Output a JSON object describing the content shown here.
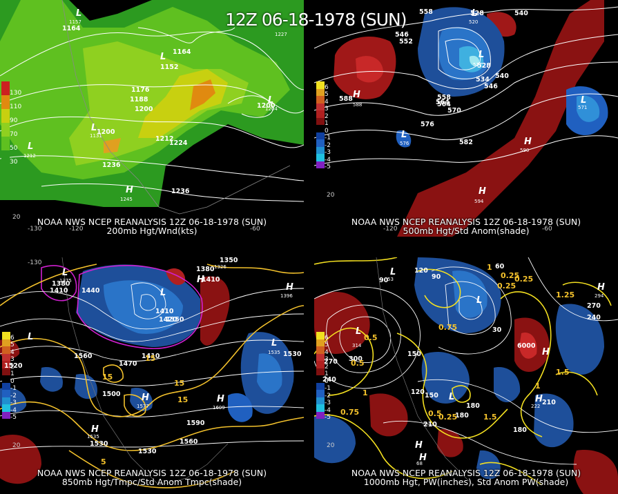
{
  "title": "12Z 06-18-1978 (SUN)",
  "panels": [
    {
      "caption_line1": "NOAA NWS NCEP REANALYSIS 12Z 06-18-1978 (SUN)",
      "caption_line2": "200mb Hgt/Wnd(kts)",
      "legend": [
        "130",
        "110",
        "90",
        "70",
        "50",
        "30"
      ],
      "legend_colors": [
        "#cc2020",
        "#e08a10",
        "#c8d010",
        "#8fd020",
        "#5fc020",
        "#2c9a20"
      ],
      "contour_labels": [
        "1164",
        "1152",
        "1164",
        "1176",
        "1188",
        "1200",
        "1200",
        "1212",
        "1224",
        "1236",
        "1236",
        "1200"
      ],
      "pressure_labels": [
        "L",
        "L",
        "L",
        "L",
        "L",
        "H"
      ],
      "station_numbers": [
        "1157",
        "1227",
        "1212",
        "1131",
        "1204",
        "1245"
      ],
      "axis_labels": [
        "-130",
        "-120",
        "20",
        "-60"
      ]
    },
    {
      "caption_line1": "NOAA NWS NCEP REANALYSIS 12Z 06-18-1978 (SUN)",
      "caption_line2": "500mb Hgt/Std Anom(shade)",
      "legend": [
        "6",
        "5",
        "4",
        "3",
        "2",
        "1",
        "0",
        "-1",
        "-2",
        "-3",
        "-4",
        "-5"
      ],
      "legend_colors": [
        "#f0e020",
        "#e0a020",
        "#d06020",
        "#c03030",
        "#b02020",
        "#801010",
        "#000000",
        "#1040a0",
        "#2060c0",
        "#2090d0",
        "#20c0e0",
        "#8020c0"
      ],
      "contour_labels": [
        "558",
        "528",
        "540",
        "546",
        "552",
        "564",
        "588",
        "558",
        "564",
        "570",
        "576",
        "582",
        "546",
        "540",
        "534",
        "528"
      ],
      "pressure_labels": [
        "L",
        "L",
        "L",
        "L",
        "H",
        "H",
        "H"
      ],
      "station_numbers": [
        "520",
        "588",
        "576",
        "571",
        "590",
        "594",
        "517"
      ],
      "axis_labels": [
        "20",
        "-120",
        "-60"
      ]
    },
    {
      "caption_line1": "NOAA NWS NCEP REANALYSIS 12Z 06-18-1978 (SUN)",
      "caption_line2": "850mb Hgt/Tmpc/Std Anom Tmpc(shade)",
      "legend": [
        "6",
        "5",
        "4",
        "3",
        "2",
        "1",
        "0",
        "-1",
        "-2",
        "-3",
        "-4",
        "-5"
      ],
      "legend_colors": [
        "#f0e020",
        "#e0a020",
        "#d06020",
        "#c03030",
        "#b02020",
        "#801010",
        "#000000",
        "#1040a0",
        "#2060c0",
        "#2090d0",
        "#20c0e0",
        "#8020c0"
      ],
      "contour_labels": [
        "1350",
        "1380",
        "1410",
        "1440",
        "1410",
        "1380",
        "1410",
        "1350",
        "1520",
        "1560",
        "1470",
        "1410",
        "1500",
        "1530",
        "1590",
        "1560",
        "1530",
        "1530",
        "1420"
      ],
      "temp_labels": [
        "15",
        "15",
        "15",
        "15",
        "5"
      ],
      "pressure_labels": [
        "L",
        "L",
        "H",
        "L",
        "H",
        "H",
        "H",
        "L",
        "H"
      ],
      "station_numbers": [
        "1375",
        "1396",
        "1326",
        "1535",
        "1577",
        "1609",
        "1535"
      ],
      "axis_labels": [
        "20",
        "-130"
      ]
    },
    {
      "caption_line1": "NOAA NWS NCEP REANALYSIS 12Z 06-18-1978 (SUN)",
      "caption_line2": "1000mb Hgt, PW(inches), Std Anom PW(shade)",
      "legend": [
        "6",
        "5",
        "4",
        "3",
        "2",
        "1",
        "0",
        "-1",
        "-2",
        "-3",
        "-4",
        "-5"
      ],
      "legend_colors": [
        "#f0e020",
        "#e0a020",
        "#d06020",
        "#c03030",
        "#b02020",
        "#801010",
        "#000000",
        "#1040a0",
        "#2060c0",
        "#2090d0",
        "#20c0e0",
        "#8020c0"
      ],
      "contour_labels": [
        "120",
        "60",
        "30",
        "90",
        "150",
        "180",
        "240",
        "270",
        "300",
        "270",
        "240",
        "210",
        "180",
        "150",
        "120",
        "210",
        "180",
        "6000",
        "90"
      ],
      "pw_labels": [
        "0.5",
        "0.25",
        "0.75",
        "0.25",
        "0.5",
        "1.25",
        "1",
        "0.75",
        "0.5",
        "1.5",
        "1",
        "1.5",
        "0.25",
        "1",
        "0.25"
      ],
      "pressure_labels": [
        "L",
        "L",
        "H",
        "L",
        "H",
        "L",
        "H",
        "H",
        "H"
      ],
      "station_numbers": [
        "53",
        "314",
        "294",
        "222",
        "68"
      ],
      "axis_labels": [
        "20"
      ]
    }
  ]
}
